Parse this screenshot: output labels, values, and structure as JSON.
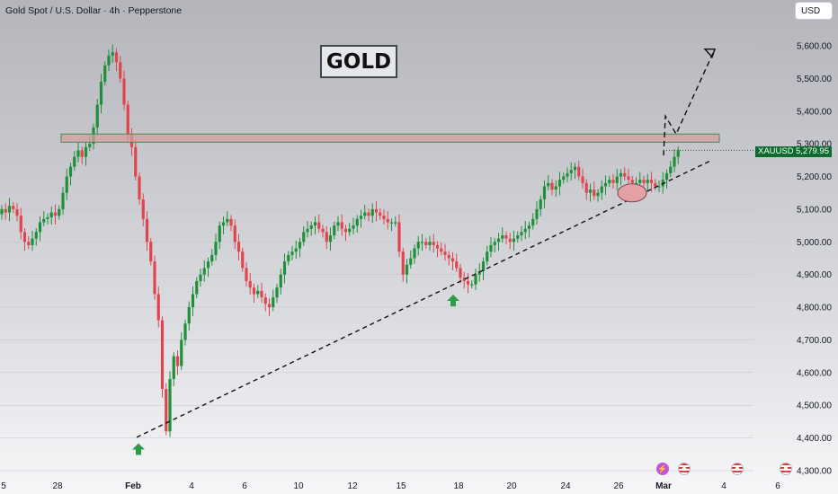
{
  "header": {
    "title": "Gold Spot / U.S. Dollar · 4h · Pepperstone"
  },
  "currency_button": "USD",
  "annotation_label": "GOLD",
  "symbol_tag": "XAUUSD",
  "last_price_tag": "5,279.95",
  "colors": {
    "up": "#1f8f3a",
    "down": "#e0454f",
    "price_tag": "#0e6b2e",
    "resistance_fill": "#d79c9c",
    "ellipse_fill": "#e4a0a4",
    "arrow": "#2f9a4a"
  },
  "icons": [
    "lightning-event-icon",
    "us-flag-event-icon",
    "us-flag-event-icon",
    "us-flag-event-icon"
  ],
  "chart_data": {
    "type": "candlestick",
    "ylim": [
      4290,
      5680
    ],
    "y_ticks": [
      "5,600.00",
      "5,500.00",
      "5,400.00",
      "5,300.00",
      "5,200.00",
      "5,100.00",
      "5,000.00",
      "4,900.00",
      "4,800.00",
      "4,700.00",
      "4,600.00",
      "4,500.00",
      "4,400.00",
      "4,300.00"
    ],
    "x_ticks": [
      "5",
      "28",
      "Feb",
      "4",
      "6",
      "10",
      "12",
      "15",
      "18",
      "20",
      "24",
      "26",
      "Mar",
      "4",
      "6"
    ],
    "last_price": 5279.95,
    "resistance_zone": [
      5305,
      5330
    ],
    "trendline": [
      [
        4402,
        5248
      ]
    ],
    "projection": [
      5265,
      5385,
      5330,
      5590
    ],
    "support_marker_lows": [
      4400,
      4855
    ],
    "close_path": [
      5100,
      5090,
      5110,
      5100,
      5080,
      5030,
      5000,
      4990,
      5010,
      5030,
      5060,
      5070,
      5075,
      5090,
      5080,
      5100,
      5150,
      5200,
      5230,
      5260,
      5280,
      5260,
      5290,
      5300,
      5350,
      5420,
      5490,
      5540,
      5570,
      5580,
      5550,
      5500,
      5420,
      5330,
      5290,
      5200,
      5130,
      5070,
      5000,
      4940,
      4840,
      4760,
      4550,
      4420,
      4580,
      4650,
      4620,
      4700,
      4750,
      4800,
      4840,
      4880,
      4900,
      4920,
      4940,
      4960,
      5000,
      5050,
      5060,
      5070,
      5050,
      5000,
      4970,
      4920,
      4880,
      4860,
      4840,
      4850,
      4830,
      4810,
      4800,
      4830,
      4860,
      4900,
      4940,
      4960,
      4970,
      4980,
      5000,
      5030,
      5040,
      5050,
      5060,
      5040,
      5030,
      5000,
      5020,
      5050,
      5060,
      5040,
      5030,
      5040,
      5050,
      5070,
      5080,
      5090,
      5080,
      5100,
      5090,
      5080,
      5070,
      5060,
      5060,
      5060,
      4970,
      4900,
      4930,
      4950,
      4980,
      5000,
      5000,
      4990,
      5000,
      4990,
      4980,
      4970,
      4960,
      4950,
      4940,
      4920,
      4890,
      4880,
      4870,
      4870,
      4900,
      4910,
      4940,
      4970,
      4990,
      5000,
      5010,
      5020,
      5010,
      5000,
      5010,
      5020,
      5030,
      5040,
      5050,
      5070,
      5100,
      5130,
      5170,
      5180,
      5160,
      5170,
      5190,
      5200,
      5210,
      5220,
      5230,
      5200,
      5180,
      5150,
      5160,
      5140,
      5150,
      5170,
      5180,
      5190,
      5180,
      5200,
      5210,
      5200,
      5190,
      5180,
      5180,
      5190,
      5180,
      5190,
      5180,
      5170,
      5170,
      5190,
      5210,
      5230,
      5260,
      5280
    ]
  }
}
